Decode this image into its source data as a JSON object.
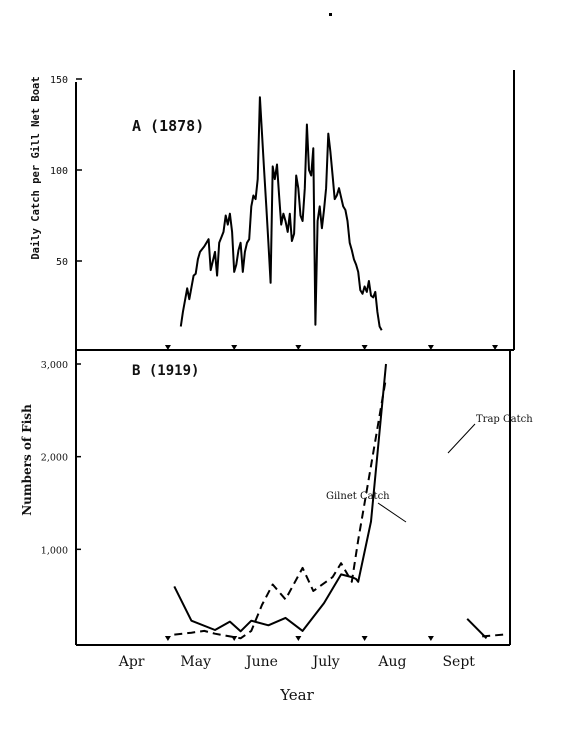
{
  "chart_data": [
    {
      "panel": "A",
      "type": "line",
      "title": "A (1878)",
      "ylabel": "Daily Catch per Gill Net Boat",
      "ylim": [
        0,
        150
      ],
      "yticks": [
        50,
        100,
        150
      ],
      "x_unit": "day of year",
      "xlim": [
        80,
        283
      ],
      "series": [
        {
          "x": [
            129,
            130,
            132,
            133,
            135,
            136,
            137,
            138,
            140,
            142,
            143,
            145,
            146,
            147,
            148,
            149,
            150,
            151,
            152,
            153,
            154,
            155,
            156,
            157,
            158,
            159,
            160,
            161,
            162,
            163,
            164,
            165,
            166,
            167,
            168,
            169,
            170,
            171,
            172,
            173,
            174,
            175,
            176,
            177,
            178,
            179,
            180,
            181,
            182,
            183,
            184,
            185,
            186,
            187,
            188,
            189,
            190,
            191,
            192,
            193,
            194,
            195,
            196,
            197,
            198,
            199,
            200,
            201,
            202,
            203,
            204,
            205,
            206,
            207,
            208,
            209,
            210,
            211,
            212,
            213,
            214,
            215,
            216,
            217,
            218,
            219,
            220,
            221,
            222,
            223,
            224,
            225,
            226,
            227,
            228,
            229,
            230,
            231,
            232
          ],
          "y": [
            14,
            22,
            35,
            29,
            42,
            43,
            51,
            55,
            58,
            62,
            45,
            55,
            42,
            60,
            63,
            66,
            75,
            70,
            76,
            66,
            44,
            48,
            56,
            60,
            44,
            55,
            60,
            62,
            80,
            86,
            84,
            95,
            140,
            120,
            100,
            80,
            60,
            38,
            102,
            95,
            103,
            86,
            70,
            76,
            72,
            66,
            76,
            61,
            65,
            97,
            90,
            75,
            72,
            90,
            125,
            100,
            97,
            112,
            15,
            72,
            80,
            68,
            78,
            90,
            120,
            110,
            97,
            84,
            86,
            90,
            85,
            80,
            78,
            72,
            60,
            56,
            51,
            48,
            44,
            34,
            32,
            36,
            33,
            39,
            31,
            30,
            33,
            22,
            14,
            12,
            0,
            0,
            0,
            0,
            0,
            0,
            0,
            0,
            0
          ]
        }
      ]
    },
    {
      "panel": "B",
      "type": "line",
      "title": "B (1919)",
      "ylabel": "Numbers of Fish",
      "xlabel": "Year",
      "ylim": [
        0,
        3000
      ],
      "yticks": [
        "1,000",
        "2,000",
        "3,000"
      ],
      "x_unit": "day of year",
      "xlim": [
        80,
        283
      ],
      "categories": [
        "Apr",
        "May",
        "June",
        "July",
        "Aug",
        "Sept"
      ],
      "series": [
        {
          "name": "Gilnet Catch",
          "style": "solid",
          "x": [
            126,
            134,
            145,
            152,
            157,
            162,
            170,
            178,
            186,
            196,
            204,
            209,
            211,
            212,
            218,
            225
          ],
          "y": [
            600,
            230,
            130,
            220,
            115,
            230,
            180,
            260,
            120,
            420,
            730,
            700,
            680,
            650,
            1300,
            3000
          ]
        },
        {
          "name": "Trap Catch",
          "style": "dashed",
          "x": [
            126,
            134,
            140,
            145,
            152,
            157,
            162,
            167,
            172,
            178,
            186,
            191,
            194,
            200,
            204,
            209,
            212,
            218,
            225
          ],
          "y": [
            80,
            100,
            120,
            90,
            60,
            40,
            120,
            400,
            620,
            460,
            800,
            550,
            600,
            700,
            850,
            650,
            1100,
            1900,
            2850
          ]
        },
        {
          "style": "solid",
          "x": [
            263,
            272
          ],
          "y": [
            250,
            40
          ]
        },
        {
          "style": "dashed",
          "x": [
            270,
            280
          ],
          "y": [
            60,
            80
          ]
        }
      ],
      "annotations": [
        "Trap Catch",
        "Gilnet Catch"
      ]
    }
  ]
}
